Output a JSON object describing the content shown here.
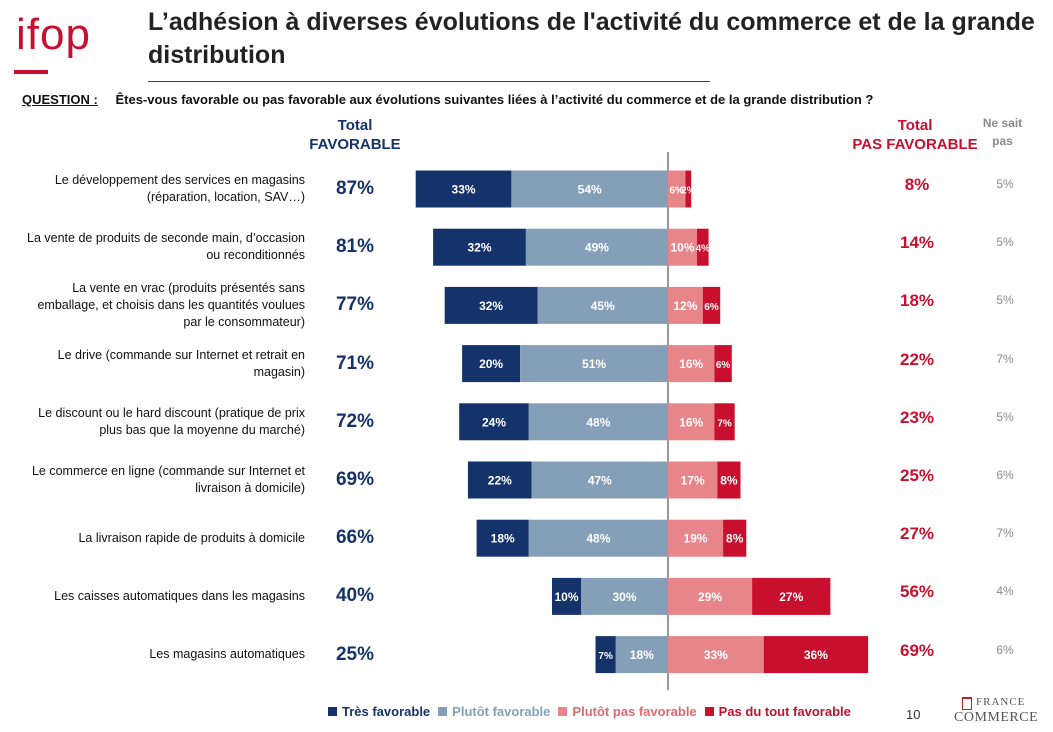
{
  "logo": {
    "text": "ifop"
  },
  "title": "L’adhésion à diverses évolutions de l'activité du commerce et de la grande distribution",
  "question": {
    "label": "QUESTION :",
    "text": "Êtes-vous favorable ou pas favorable aux évolutions suivantes liées à l’activité du commerce et de la grande distribution ?"
  },
  "headers": {
    "total_favorable": [
      "Total",
      "FAVORABLE"
    ],
    "total_pas_favorable": [
      "Total",
      "PAS FAVORABLE"
    ],
    "ne_sait_pas": [
      "Ne sait",
      "pas"
    ]
  },
  "colors": {
    "tres_favorable": "#14336b",
    "plutot_favorable": "#869fb8",
    "plutot_pas_favorable": "#e8858a",
    "pas_du_tout_favorable": "#c8102e"
  },
  "chart_data": {
    "type": "bar",
    "orientation": "horizontal",
    "stacked": "diverging",
    "series": [
      {
        "name": "Très favorable",
        "values": [
          33,
          32,
          32,
          20,
          24,
          22,
          18,
          10,
          7
        ]
      },
      {
        "name": "Plutôt favorable",
        "values": [
          54,
          49,
          45,
          51,
          48,
          47,
          48,
          30,
          18
        ]
      },
      {
        "name": "Plutôt pas favorable",
        "values": [
          6,
          10,
          12,
          16,
          16,
          17,
          19,
          29,
          33
        ]
      },
      {
        "name": "Pas du tout favorable",
        "values": [
          2,
          4,
          6,
          6,
          7,
          8,
          8,
          27,
          36
        ]
      }
    ],
    "categories": [
      [
        "Le développement des services en magasins",
        "(réparation, location, SAV…)"
      ],
      [
        "La vente de produits de seconde main, d’occasion",
        "ou reconditionnés"
      ],
      [
        "La vente en vrac (produits présentés sans",
        "emballage, et choisis dans les quantités voulues",
        "par le consommateur)"
      ],
      [
        "Le drive (commande sur Internet et retrait en",
        "magasin)"
      ],
      [
        "Le discount ou le hard discount (pratique de prix",
        "plus bas que la moyenne du marché)"
      ],
      [
        "Le commerce en ligne (commande sur Internet et",
        "livraison à domicile)"
      ],
      [
        "La livraison rapide de produits à domicile"
      ],
      [
        "Les caisses automatiques dans les magasins"
      ],
      [
        "Les magasins automatiques"
      ]
    ],
    "total_favorable": [
      "87%",
      "81%",
      "77%",
      "71%",
      "72%",
      "69%",
      "66%",
      "40%",
      "25%"
    ],
    "total_pas_favorable": [
      "8%",
      "14%",
      "18%",
      "22%",
      "23%",
      "25%",
      "27%",
      "56%",
      "69%"
    ],
    "ne_sait_pas": [
      "5%",
      "5%",
      "5%",
      "7%",
      "5%",
      "6%",
      "7%",
      "4%",
      "6%"
    ],
    "legend": {
      "placement": "bottom"
    }
  },
  "footer": {
    "page_number": "10",
    "brand_top": "FRANCE",
    "brand_bottom": "COMMERCE"
  }
}
